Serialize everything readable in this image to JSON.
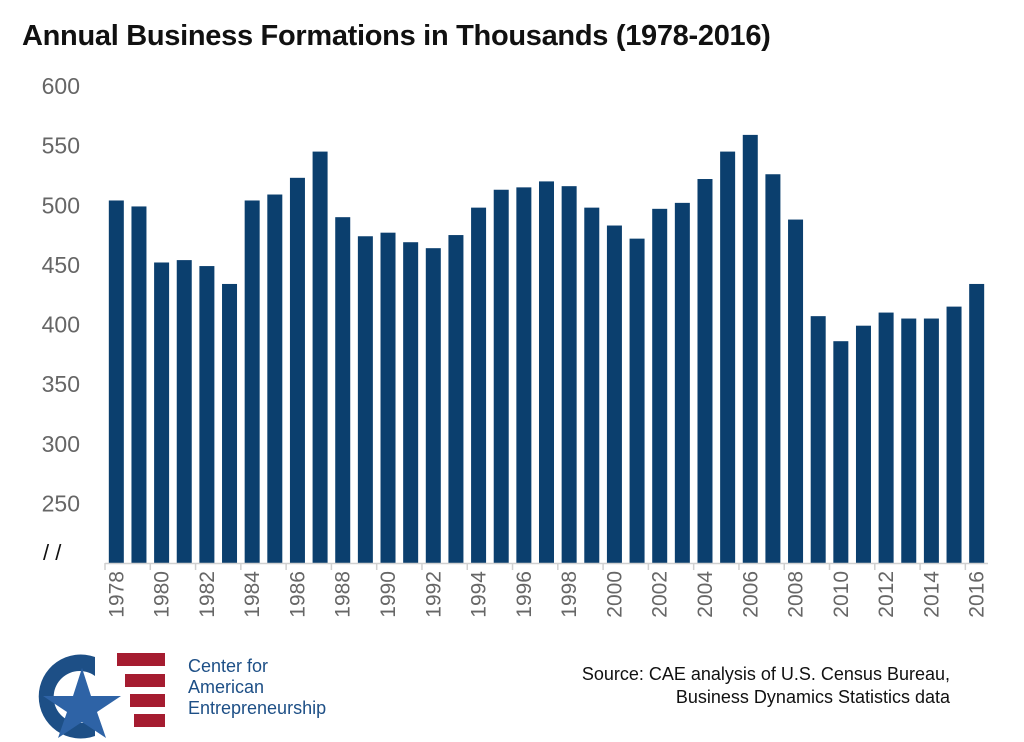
{
  "chart_data": {
    "type": "bar",
    "title": "Annual Business Formations in Thousands (1978-2016)",
    "xlabel": "",
    "ylabel": "",
    "ylim": [
      200,
      600
    ],
    "axis_break": "/ /",
    "yticks": [
      250,
      300,
      350,
      400,
      450,
      500,
      550,
      600
    ],
    "grid": false,
    "bar_color": "#0b3f6e",
    "categories": [
      "1978",
      "1979",
      "1980",
      "1981",
      "1982",
      "1983",
      "1984",
      "1985",
      "1986",
      "1987",
      "1988",
      "1989",
      "1990",
      "1991",
      "1992",
      "1993",
      "1994",
      "1995",
      "1996",
      "1997",
      "1998",
      "1999",
      "2000",
      "2001",
      "2002",
      "2003",
      "2004",
      "2005",
      "2006",
      "2007",
      "2008",
      "2009",
      "2010",
      "2011",
      "2012",
      "2013",
      "2014",
      "2015",
      "2016"
    ],
    "xtick_labels": [
      "1978",
      "1980",
      "1982",
      "1984",
      "1986",
      "1988",
      "1990",
      "1992",
      "1994",
      "1996",
      "1998",
      "2000",
      "2002",
      "2004",
      "2006",
      "2008",
      "2010",
      "2012",
      "2014",
      "2016"
    ],
    "values": [
      504,
      499,
      452,
      454,
      449,
      434,
      504,
      509,
      523,
      545,
      490,
      474,
      477,
      469,
      464,
      475,
      498,
      513,
      515,
      520,
      516,
      498,
      483,
      472,
      497,
      502,
      522,
      545,
      559,
      526,
      488,
      407,
      386,
      399,
      410,
      405,
      405,
      415,
      434
    ]
  },
  "source": {
    "line1": "Source: CAE analysis of U.S. Census Bureau,",
    "line2": "Business Dynamics Statistics data"
  },
  "logo": {
    "letters": "CAE",
    "line1": "Center for",
    "line2": "American",
    "line3": "Entrepreneurship",
    "blue": "#1d4f86",
    "red": "#a51c30"
  }
}
